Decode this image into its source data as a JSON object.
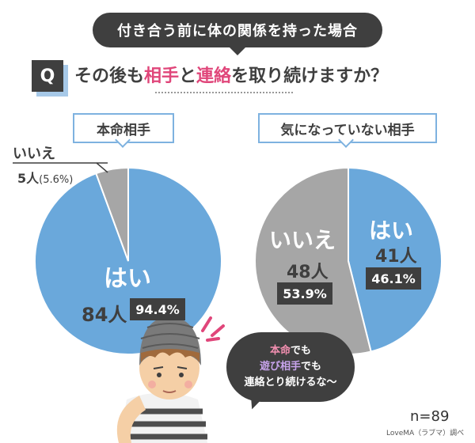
{
  "header": {
    "banner": "付き合う前に体の関係を持った場合",
    "q_mark": "Q",
    "question_parts": [
      {
        "text": "その後も",
        "hl": false
      },
      {
        "text": "相手",
        "hl": true
      },
      {
        "text": "と",
        "hl": false
      },
      {
        "text": "連絡",
        "hl": true
      },
      {
        "text": "を取り続けますか？",
        "hl": false
      }
    ]
  },
  "colors": {
    "yes": "#6aa8db",
    "no": "#a6a6a6",
    "dark": "#3f3f3f",
    "accent": "#e0467a"
  },
  "chart_data": [
    {
      "type": "pie",
      "title": "本命相手",
      "slices": [
        {
          "label": "はい",
          "count": "84人",
          "percent": "94.4%",
          "value": 94.4
        },
        {
          "label": "いいえ",
          "count": "5人",
          "percent": "(5.6%)",
          "value": 5.6
        }
      ]
    },
    {
      "type": "pie",
      "title": "気になっていない相手",
      "slices": [
        {
          "label": "はい",
          "count": "41人",
          "percent": "46.1%",
          "value": 46.1
        },
        {
          "label": "いいえ",
          "count": "48人",
          "percent": "53.9%",
          "value": 53.9
        }
      ]
    }
  ],
  "bubble": {
    "line1_hl": "本命",
    "line1_rest": "でも",
    "line2_hl": "遊び相手",
    "line2_rest": "でも",
    "line3": "連絡とり続けるな～"
  },
  "footer": {
    "n": "n=89",
    "credit": "LoveMA（ラブマ）調べ"
  }
}
